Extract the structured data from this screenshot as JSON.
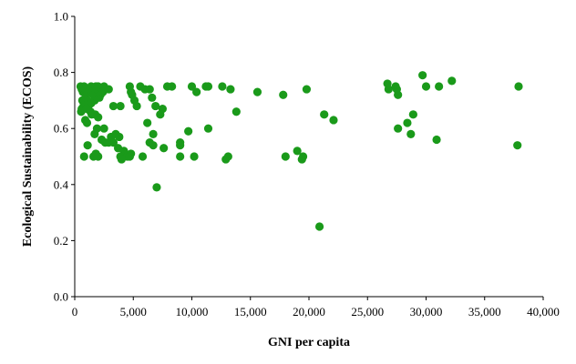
{
  "chart_data": {
    "type": "scatter",
    "title": "",
    "xlabel": "GNI per capita",
    "ylabel": "Ecological Sustainability (ECOS)",
    "xlim": [
      0,
      40000
    ],
    "ylim": [
      0.0,
      1.0
    ],
    "x_ticks": [
      0,
      5000,
      10000,
      15000,
      20000,
      25000,
      30000,
      35000,
      40000
    ],
    "x_tick_labels": [
      "0",
      "5,000",
      "10,000",
      "15,000",
      "20,000",
      "25,000",
      "30,000",
      "35,000",
      "40,000"
    ],
    "y_ticks": [
      0.0,
      0.2,
      0.4,
      0.6,
      0.8,
      1.0
    ],
    "y_tick_labels": [
      "0.0",
      "0.2",
      "0.4",
      "0.6",
      "0.8",
      "1.0"
    ],
    "grid": false,
    "legend": "none",
    "marker_color": "#1a9a1a",
    "series": [
      {
        "points": [
          [
            500,
            0.75
          ],
          [
            600,
            0.74
          ],
          [
            700,
            0.73
          ],
          [
            650,
            0.7
          ],
          [
            750,
            0.68
          ],
          [
            600,
            0.67
          ],
          [
            550,
            0.66
          ],
          [
            800,
            0.75
          ],
          [
            900,
            0.74
          ],
          [
            1000,
            0.72
          ],
          [
            1100,
            0.7
          ],
          [
            850,
            0.69
          ],
          [
            950,
            0.71
          ],
          [
            1200,
            0.73
          ],
          [
            1300,
            0.74
          ],
          [
            1400,
            0.75
          ],
          [
            1500,
            0.73
          ],
          [
            1600,
            0.72
          ],
          [
            1700,
            0.7
          ],
          [
            1800,
            0.75
          ],
          [
            1900,
            0.74
          ],
          [
            2000,
            0.75
          ],
          [
            2100,
            0.71
          ],
          [
            2200,
            0.72
          ],
          [
            2400,
            0.73
          ],
          [
            2500,
            0.75
          ],
          [
            2900,
            0.74
          ],
          [
            1150,
            0.68
          ],
          [
            1350,
            0.66
          ],
          [
            1450,
            0.65
          ],
          [
            1750,
            0.65
          ],
          [
            2000,
            0.64
          ],
          [
            1400,
            0.69
          ],
          [
            1050,
            0.67
          ],
          [
            900,
            0.63
          ],
          [
            1050,
            0.62
          ],
          [
            1900,
            0.6
          ],
          [
            1700,
            0.58
          ],
          [
            2500,
            0.6
          ],
          [
            800,
            0.5
          ],
          [
            1100,
            0.54
          ],
          [
            1600,
            0.5
          ],
          [
            1800,
            0.51
          ],
          [
            2000,
            0.5
          ],
          [
            2300,
            0.56
          ],
          [
            2600,
            0.55
          ],
          [
            2900,
            0.55
          ],
          [
            3100,
            0.57
          ],
          [
            3300,
            0.55
          ],
          [
            3500,
            0.58
          ],
          [
            3700,
            0.53
          ],
          [
            3800,
            0.57
          ],
          [
            3300,
            0.68
          ],
          [
            3900,
            0.5
          ],
          [
            4200,
            0.52
          ],
          [
            4500,
            0.5
          ],
          [
            4000,
            0.49
          ],
          [
            4800,
            0.51
          ],
          [
            4700,
            0.5
          ],
          [
            3900,
            0.68
          ],
          [
            4700,
            0.75
          ],
          [
            4800,
            0.73
          ],
          [
            4900,
            0.72
          ],
          [
            5100,
            0.7
          ],
          [
            5300,
            0.68
          ],
          [
            5600,
            0.75
          ],
          [
            6000,
            0.74
          ],
          [
            6400,
            0.74
          ],
          [
            6200,
            0.62
          ],
          [
            6700,
            0.58
          ],
          [
            6600,
            0.71
          ],
          [
            6900,
            0.68
          ],
          [
            7300,
            0.65
          ],
          [
            7500,
            0.67
          ],
          [
            7600,
            0.53
          ],
          [
            6400,
            0.55
          ],
          [
            6700,
            0.54
          ],
          [
            5800,
            0.5
          ],
          [
            7000,
            0.39
          ],
          [
            7900,
            0.75
          ],
          [
            8300,
            0.75
          ],
          [
            9000,
            0.55
          ],
          [
            9000,
            0.5
          ],
          [
            9700,
            0.59
          ],
          [
            9000,
            0.54
          ],
          [
            10000,
            0.75
          ],
          [
            10400,
            0.73
          ],
          [
            10200,
            0.5
          ],
          [
            11200,
            0.75
          ],
          [
            11400,
            0.75
          ],
          [
            11400,
            0.6
          ],
          [
            12600,
            0.75
          ],
          [
            13300,
            0.74
          ],
          [
            12900,
            0.49
          ],
          [
            13100,
            0.5
          ],
          [
            13800,
            0.66
          ],
          [
            15600,
            0.73
          ],
          [
            17800,
            0.72
          ],
          [
            18000,
            0.5
          ],
          [
            19000,
            0.52
          ],
          [
            19400,
            0.49
          ],
          [
            19500,
            0.5
          ],
          [
            19800,
            0.74
          ],
          [
            20900,
            0.25
          ],
          [
            21300,
            0.65
          ],
          [
            22100,
            0.63
          ],
          [
            26700,
            0.76
          ],
          [
            26800,
            0.74
          ],
          [
            27400,
            0.75
          ],
          [
            27500,
            0.74
          ],
          [
            27600,
            0.72
          ],
          [
            27600,
            0.6
          ],
          [
            28400,
            0.62
          ],
          [
            28700,
            0.58
          ],
          [
            28900,
            0.65
          ],
          [
            29700,
            0.79
          ],
          [
            30000,
            0.75
          ],
          [
            30900,
            0.56
          ],
          [
            31100,
            0.75
          ],
          [
            32200,
            0.77
          ],
          [
            37800,
            0.54
          ],
          [
            37900,
            0.75
          ]
        ]
      }
    ]
  }
}
